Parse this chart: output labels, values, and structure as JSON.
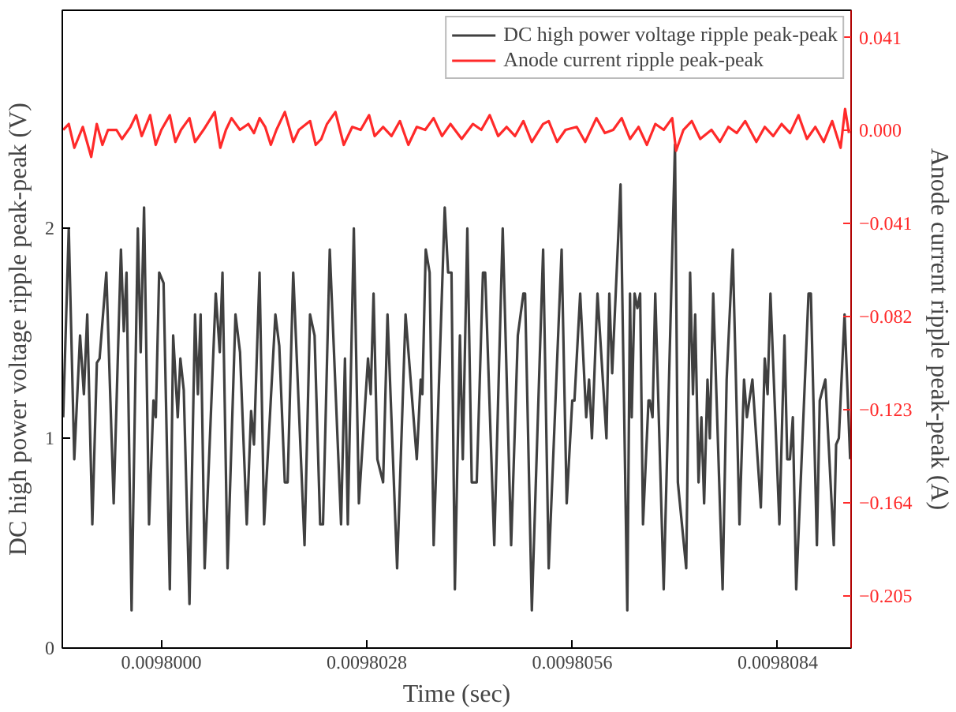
{
  "chart_data": {
    "type": "line",
    "xlabel": "Time (sec)",
    "ylabel": "DC high power voltage ripple peak-peak (V)",
    "y2label": "Anode current ripple peak-peak (A)",
    "xlim": [
      0.00979865,
      0.0098094
    ],
    "xticks": [
      {
        "value": 0.0098,
        "label": "0.0098000"
      },
      {
        "value": 0.0098028,
        "label": "0.0098028"
      },
      {
        "value": 0.0098056,
        "label": "0.0098056"
      },
      {
        "value": 0.0098084,
        "label": "0.0098084"
      }
    ],
    "ylim": [
      0,
      3.04
    ],
    "yticks": [
      0,
      1,
      2
    ],
    "y2lim": [
      -0.228,
      0.053
    ],
    "y2ticks": [
      0.041,
      {
        "value": 0,
        "label": "0.000"
      },
      -0.041,
      -0.082,
      -0.123,
      -0.164,
      -0.205
    ],
    "grid": false,
    "legend": "top right",
    "line_style": "solid",
    "series": [
      {
        "name": "DC high power voltage ripple peak-peak",
        "color": "#404040",
        "x": [
          0.009798662,
          0.009798738,
          0.009798813,
          0.009798892,
          0.009798944,
          0.00979899,
          0.009799059,
          0.009799121,
          0.009799158,
          0.00979925,
          0.00979935,
          0.009799449,
          0.009799488,
          0.009799525,
          0.009799594,
          0.009799679,
          0.009799718,
          0.009799764,
          0.009799832,
          0.009799892,
          0.009799924,
          0.00979997,
          0.00980003,
          0.009800115,
          0.009800161,
          0.009800223,
          0.009800259,
          0.009800305,
          0.009800383,
          0.009800459,
          0.009800498,
          0.009800535,
          0.00980059,
          0.009800741,
          0.009800796,
          0.009800833,
          0.009800902,
          0.00980101,
          0.009801072,
          0.009801164,
          0.009801223,
          0.009801262,
          0.009801338,
          0.0098014,
          0.009801554,
          0.009801607,
          0.009801682,
          0.009801721,
          0.009801797,
          0.009801951,
          0.009802026,
          0.009802088,
          0.009802164,
          0.009802203,
          0.009802295,
          0.009802449,
          0.009802502,
          0.009802541,
          0.009802623,
          0.009802692,
          0.009802816,
          0.009802853,
          0.009802892,
          0.009802944,
          0.009803022,
          0.009803082,
          0.009803213,
          0.009803328,
          0.009803481,
          0.009803534,
          0.009803557,
          0.009803603,
          0.009803656,
          0.009803711,
          0.009803862,
          0.009803908,
          0.009803954,
          0.009804,
          0.009804069,
          0.009804108,
          0.00980417,
          0.00980423,
          0.009804298,
          0.009804383,
          0.009804413,
          0.009804537,
          0.009804652,
          0.009804767,
          0.009804858,
          0.009804934,
          0.009804957,
          0.009805049,
          0.009805203,
          0.009805279,
          0.009805455,
          0.009805524,
          0.0098056,
          0.00980563,
          0.009805708,
          0.00980579,
          0.009805829,
          0.009805868,
          0.009805944,
          0.009806066,
          0.009806105,
          0.009806144,
          0.009806258,
          0.00980635,
          0.009806387,
          0.00980641,
          0.009806449,
          0.009806488,
          0.009806525,
          0.009806564,
          0.009806639,
          0.009806656,
          0.009806694,
          0.009806731,
          0.009806846,
          0.009807,
          0.009807039,
          0.009807153,
          0.009807206,
          0.009807245,
          0.009807275,
          0.009807321,
          0.00980736,
          0.009807397,
          0.009807443,
          0.009807475,
          0.009807521,
          0.009807649,
          0.009807704,
          0.009807787,
          0.009807879,
          0.009807941,
          0.00980798,
          0.009808055,
          0.00980817,
          0.009808223,
          0.009808262,
          0.009808301,
          0.009808423,
          0.009808492,
          0.00980853,
          0.009808567,
          0.009808606,
          0.009808652,
          0.00980882,
          0.009808852,
          0.009808934,
          0.009808973,
          0.009809049,
          0.009809164,
          0.009809196,
          0.009809233,
          0.009809311,
          0.009809387
        ],
        "values": [
          1.1,
          2.0,
          0.9,
          1.49,
          1.21,
          1.59,
          0.59,
          1.36,
          1.38,
          1.79,
          0.69,
          1.9,
          1.51,
          1.79,
          0.18,
          2.0,
          1.41,
          2.1,
          0.59,
          1.18,
          1.1,
          1.79,
          1.74,
          0.28,
          1.49,
          1.1,
          1.38,
          1.23,
          0.21,
          1.59,
          1.21,
          1.59,
          0.38,
          1.69,
          1.41,
          1.79,
          0.38,
          1.59,
          1.41,
          0.59,
          1.13,
          0.97,
          1.79,
          0.59,
          1.59,
          1.44,
          0.79,
          0.79,
          1.79,
          0.49,
          1.59,
          1.49,
          0.59,
          0.59,
          1.9,
          0.59,
          1.38,
          0.59,
          2.0,
          0.69,
          1.38,
          1.21,
          1.69,
          0.9,
          0.79,
          1.59,
          0.38,
          1.59,
          0.9,
          1.28,
          1.21,
          1.9,
          1.79,
          0.49,
          2.1,
          1.79,
          1.79,
          0.28,
          1.49,
          0.9,
          2.0,
          0.79,
          0.79,
          1.79,
          1.79,
          0.49,
          2.0,
          0.49,
          1.49,
          1.69,
          1.69,
          0.18,
          1.9,
          0.38,
          1.9,
          0.69,
          1.18,
          1.18,
          1.69,
          1.1,
          1.28,
          1.0,
          1.69,
          1.0,
          1.69,
          1.31,
          2.21,
          0.18,
          1.69,
          1.1,
          1.69,
          1.62,
          1.69,
          0.59,
          1.18,
          1.18,
          1.1,
          1.69,
          0.28,
          2.4,
          0.79,
          0.38,
          1.79,
          1.21,
          1.59,
          0.79,
          1.1,
          0.69,
          1.28,
          1.0,
          1.69,
          0.28,
          1.28,
          1.9,
          0.59,
          1.28,
          1.1,
          1.28,
          0.67,
          1.38,
          1.21,
          1.69,
          0.59,
          1.49,
          0.9,
          0.9,
          1.1,
          0.28,
          1.69,
          1.69,
          0.49,
          1.18,
          1.28,
          0.49,
          0.97,
          1.0,
          1.59,
          0.9
        ]
      },
      {
        "name": "Anode current ripple peak-peak",
        "color": "#ff2a2a",
        "axis": "y2",
        "x": [
          0.009798661,
          0.009798738,
          0.009798814,
          0.009798929,
          0.009799044,
          0.00979912,
          0.009799197,
          0.009799273,
          0.009799388,
          0.009799464,
          0.009799579,
          0.009799656,
          0.009799732,
          0.009799847,
          0.009799923,
          0.0098,
          0.009800115,
          0.009800191,
          0.009800268,
          0.009800383,
          0.009800459,
          0.009800574,
          0.00980065,
          0.009800727,
          0.009800803,
          0.00980088,
          0.009800956,
          0.009801071,
          0.009801186,
          0.009801262,
          0.009801339,
          0.009801415,
          0.009801492,
          0.009801568,
          0.009801683,
          0.009801798,
          0.009801874,
          0.009802027,
          0.009802104,
          0.00980218,
          0.009802257,
          0.009802372,
          0.009802486,
          0.009802601,
          0.009802716,
          0.009802831,
          0.009802907,
          0.009803022,
          0.009803137,
          0.009803251,
          0.009803366,
          0.009803481,
          0.009803596,
          0.00980371,
          0.009803825,
          0.00980394,
          0.009804093,
          0.009804246,
          0.009804361,
          0.009804475,
          0.00980459,
          0.009804705,
          0.00980482,
          0.009804934,
          0.009805049,
          0.009805202,
          0.009805279,
          0.009805393,
          0.009805508,
          0.009805661,
          0.009805776,
          0.009805929,
          0.009806044,
          0.009806158,
          0.009806273,
          0.009806388,
          0.009806503,
          0.009806617,
          0.009806732,
          0.009806847,
          0.009806962,
          0.009807015,
          0.009807115,
          0.009807229,
          0.009807344,
          0.009807497,
          0.009807612,
          0.009807727,
          0.009807841,
          0.009807956,
          0.009808109,
          0.009808224,
          0.009808339,
          0.009808453,
          0.009808568,
          0.009808683,
          0.009808798,
          0.009808912,
          0.009809027,
          0.009809142,
          0.009809257,
          0.009809318,
          0.009809371
        ],
        "values": [
          0.0003,
          0.0029,
          -0.0076,
          0.0016,
          -0.0116,
          0.0029,
          -0.0063,
          0.0003,
          0.0003,
          -0.0037,
          0.0016,
          0.0068,
          -0.0024,
          0.0068,
          -0.0063,
          0.0003,
          0.0068,
          -0.005,
          0.0003,
          0.0055,
          -0.005,
          0.0003,
          0.0042,
          0.0082,
          -0.0076,
          0.0003,
          0.0055,
          0.0003,
          0.0029,
          -0.0011,
          0.0055,
          0.0016,
          -0.0063,
          0.0003,
          0.0082,
          -0.005,
          0.0003,
          0.0042,
          -0.0063,
          -0.0037,
          0.0029,
          0.0082,
          -0.0063,
          0.0016,
          0.0003,
          0.0068,
          -0.0024,
          0.0016,
          -0.0024,
          0.0042,
          -0.0063,
          0.0016,
          0.0003,
          0.0055,
          -0.0024,
          0.0029,
          -0.0037,
          0.0029,
          0.0003,
          0.0068,
          -0.0024,
          0.0016,
          -0.0024,
          0.0042,
          -0.005,
          0.0029,
          0.0042,
          -0.005,
          0.0003,
          0.0016,
          -0.005,
          0.0055,
          -0.0011,
          0.0003,
          0.0055,
          -0.0037,
          0.0016,
          -0.0063,
          0.0029,
          0.0003,
          0.0055,
          -0.0089,
          0.0003,
          0.0042,
          -0.0037,
          0.0003,
          -0.005,
          0.0016,
          -0.0011,
          0.0042,
          -0.005,
          0.0016,
          -0.0024,
          0.0029,
          -0.0011,
          0.0068,
          -0.0037,
          0.0016,
          -0.005,
          0.0042,
          -0.0076,
          0.0095,
          -0.0011
        ]
      }
    ]
  }
}
